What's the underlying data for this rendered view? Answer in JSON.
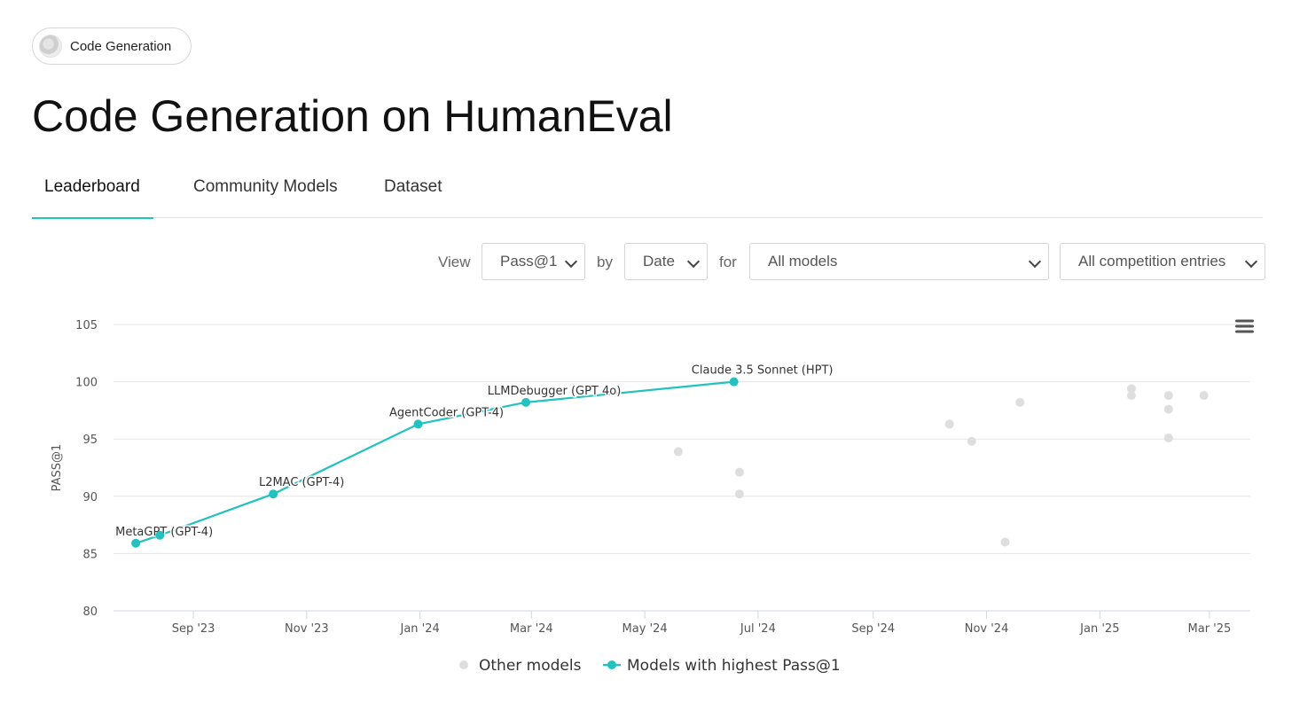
{
  "task_pill": {
    "label": "Code Generation"
  },
  "page": {
    "title": "Code Generation on HumanEval"
  },
  "tabs": [
    {
      "label": "Leaderboard",
      "active": true
    },
    {
      "label": "Community Models",
      "active": false
    },
    {
      "label": "Dataset",
      "active": false
    }
  ],
  "filters": {
    "view_word": "View",
    "metric": "Pass@1",
    "by_word": "by",
    "by_value": "Date",
    "for_word": "for",
    "models": "All models",
    "entries": "All competition entries"
  },
  "chart_menu_icon": "hamburger-menu-icon",
  "chart_data": {
    "type": "scatter",
    "ylabel": "PASS@1",
    "xlabel": "",
    "ylim": [
      80,
      105
    ],
    "yticks": [
      80,
      85,
      90,
      95,
      100,
      105
    ],
    "xlim": [
      "2023-07-20",
      "2025-03-23"
    ],
    "xticks": [
      {
        "date": "2023-09-01",
        "label": "Sep '23"
      },
      {
        "date": "2023-11-01",
        "label": "Nov '23"
      },
      {
        "date": "2024-01-01",
        "label": "Jan '24"
      },
      {
        "date": "2024-03-01",
        "label": "Mar '24"
      },
      {
        "date": "2024-05-01",
        "label": "May '24"
      },
      {
        "date": "2024-07-01",
        "label": "Jul '24"
      },
      {
        "date": "2024-09-01",
        "label": "Sep '24"
      },
      {
        "date": "2024-11-01",
        "label": "Nov '24"
      },
      {
        "date": "2025-01-01",
        "label": "Jan '25"
      },
      {
        "date": "2025-03-01",
        "label": "Mar '25"
      }
    ],
    "grid": true,
    "legend_position": "bottom-center",
    "colors": {
      "best": "#21c2bf",
      "other": "#dedede"
    },
    "series": [
      {
        "name": "Other models",
        "points": [
          {
            "x": "2024-05-19",
            "y": 93.9
          },
          {
            "x": "2024-06-21",
            "y": 92.1
          },
          {
            "x": "2024-06-21",
            "y": 90.2
          },
          {
            "x": "2024-10-12",
            "y": 96.3
          },
          {
            "x": "2024-10-24",
            "y": 94.8
          },
          {
            "x": "2024-11-11",
            "y": 86.0
          },
          {
            "x": "2024-11-19",
            "y": 98.2
          },
          {
            "x": "2025-01-18",
            "y": 99.4
          },
          {
            "x": "2025-01-18",
            "y": 98.8
          },
          {
            "x": "2025-02-07",
            "y": 98.8
          },
          {
            "x": "2025-02-07",
            "y": 97.6
          },
          {
            "x": "2025-02-07",
            "y": 95.1
          },
          {
            "x": "2025-02-26",
            "y": 98.8
          }
        ]
      },
      {
        "name": "Models with highest Pass@1",
        "points": [
          {
            "x": "2023-08-01",
            "y": 85.9,
            "label": "MetaGPT (GPT-4)"
          },
          {
            "x": "2023-08-14",
            "y": 86.6
          },
          {
            "x": "2023-10-14",
            "y": 90.2,
            "label": "L2MAC (GPT-4)"
          },
          {
            "x": "2023-12-31",
            "y": 96.3,
            "label": "AgentCoder (GPT-4)"
          },
          {
            "x": "2024-02-27",
            "y": 98.2,
            "label": "LLMDebugger (GPT 4o)"
          },
          {
            "x": "2024-06-18",
            "y": 100.0,
            "label": "Claude 3.5 Sonnet (HPT)"
          }
        ]
      }
    ]
  }
}
